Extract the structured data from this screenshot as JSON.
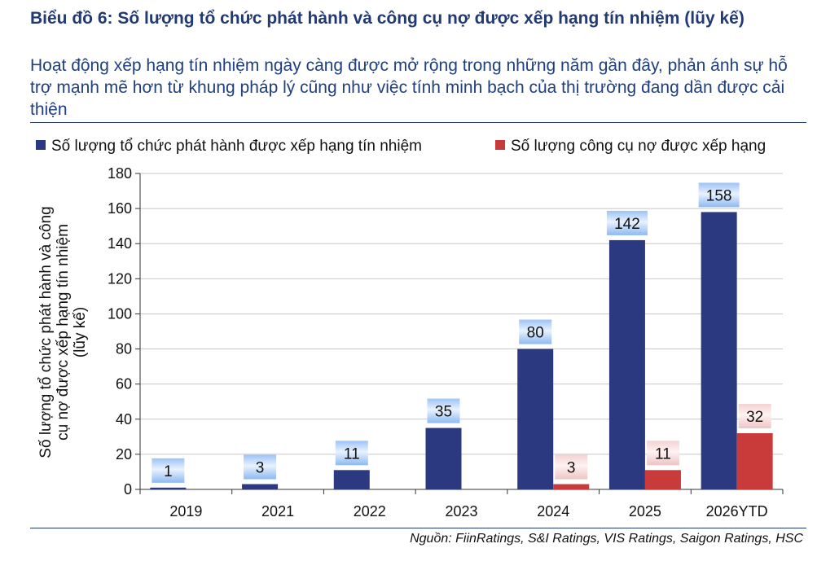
{
  "header": {
    "title": "Biểu đồ 6: Số lượng tổ chức phát hành và công cụ nợ được xếp hạng tín nhiệm (lũy kế)",
    "subtitle": "Hoạt động xếp hạng tín nhiệm ngày càng được mở rộng trong những năm gần đây, phản ánh sự hỗ trợ mạnh mẽ hơn từ khung pháp lý cũng như việc tính minh bạch của thị trường đang dần được cải thiện"
  },
  "footer": {
    "source": "Nguồn: FiinRatings, S&I Ratings, VIS Ratings, Saigon Ratings, HSC"
  },
  "chart_data": {
    "type": "bar",
    "categories": [
      "2019",
      "2021",
      "2022",
      "2023",
      "2024",
      "2025",
      "2026YTD"
    ],
    "series": [
      {
        "name": "Số lượng tổ chức phát hành được xếp hạng tín nhiệm",
        "values": [
          1,
          3,
          11,
          35,
          80,
          142,
          158
        ],
        "labels": [
          "1",
          "3",
          "11",
          "35",
          "80",
          "142",
          "158"
        ],
        "color": "#2b3a80"
      },
      {
        "name": "Số lượng công cụ nợ được xếp hạng",
        "values": [
          0,
          0,
          0,
          0,
          3,
          11,
          32
        ],
        "labels": [
          "",
          "",
          "",
          "",
          "3",
          "11",
          "32"
        ],
        "color": "#c93b3b"
      }
    ],
    "ylabel": "Số lượng tổ chức phát hành và công cụ nợ được xếp hạng tín nhiệm (lũy kế)",
    "xlabel": "",
    "ylim": [
      0,
      180
    ],
    "yticks": [
      0,
      20,
      40,
      60,
      80,
      100,
      120,
      140,
      160,
      180
    ],
    "grid": true,
    "legend": "top"
  }
}
